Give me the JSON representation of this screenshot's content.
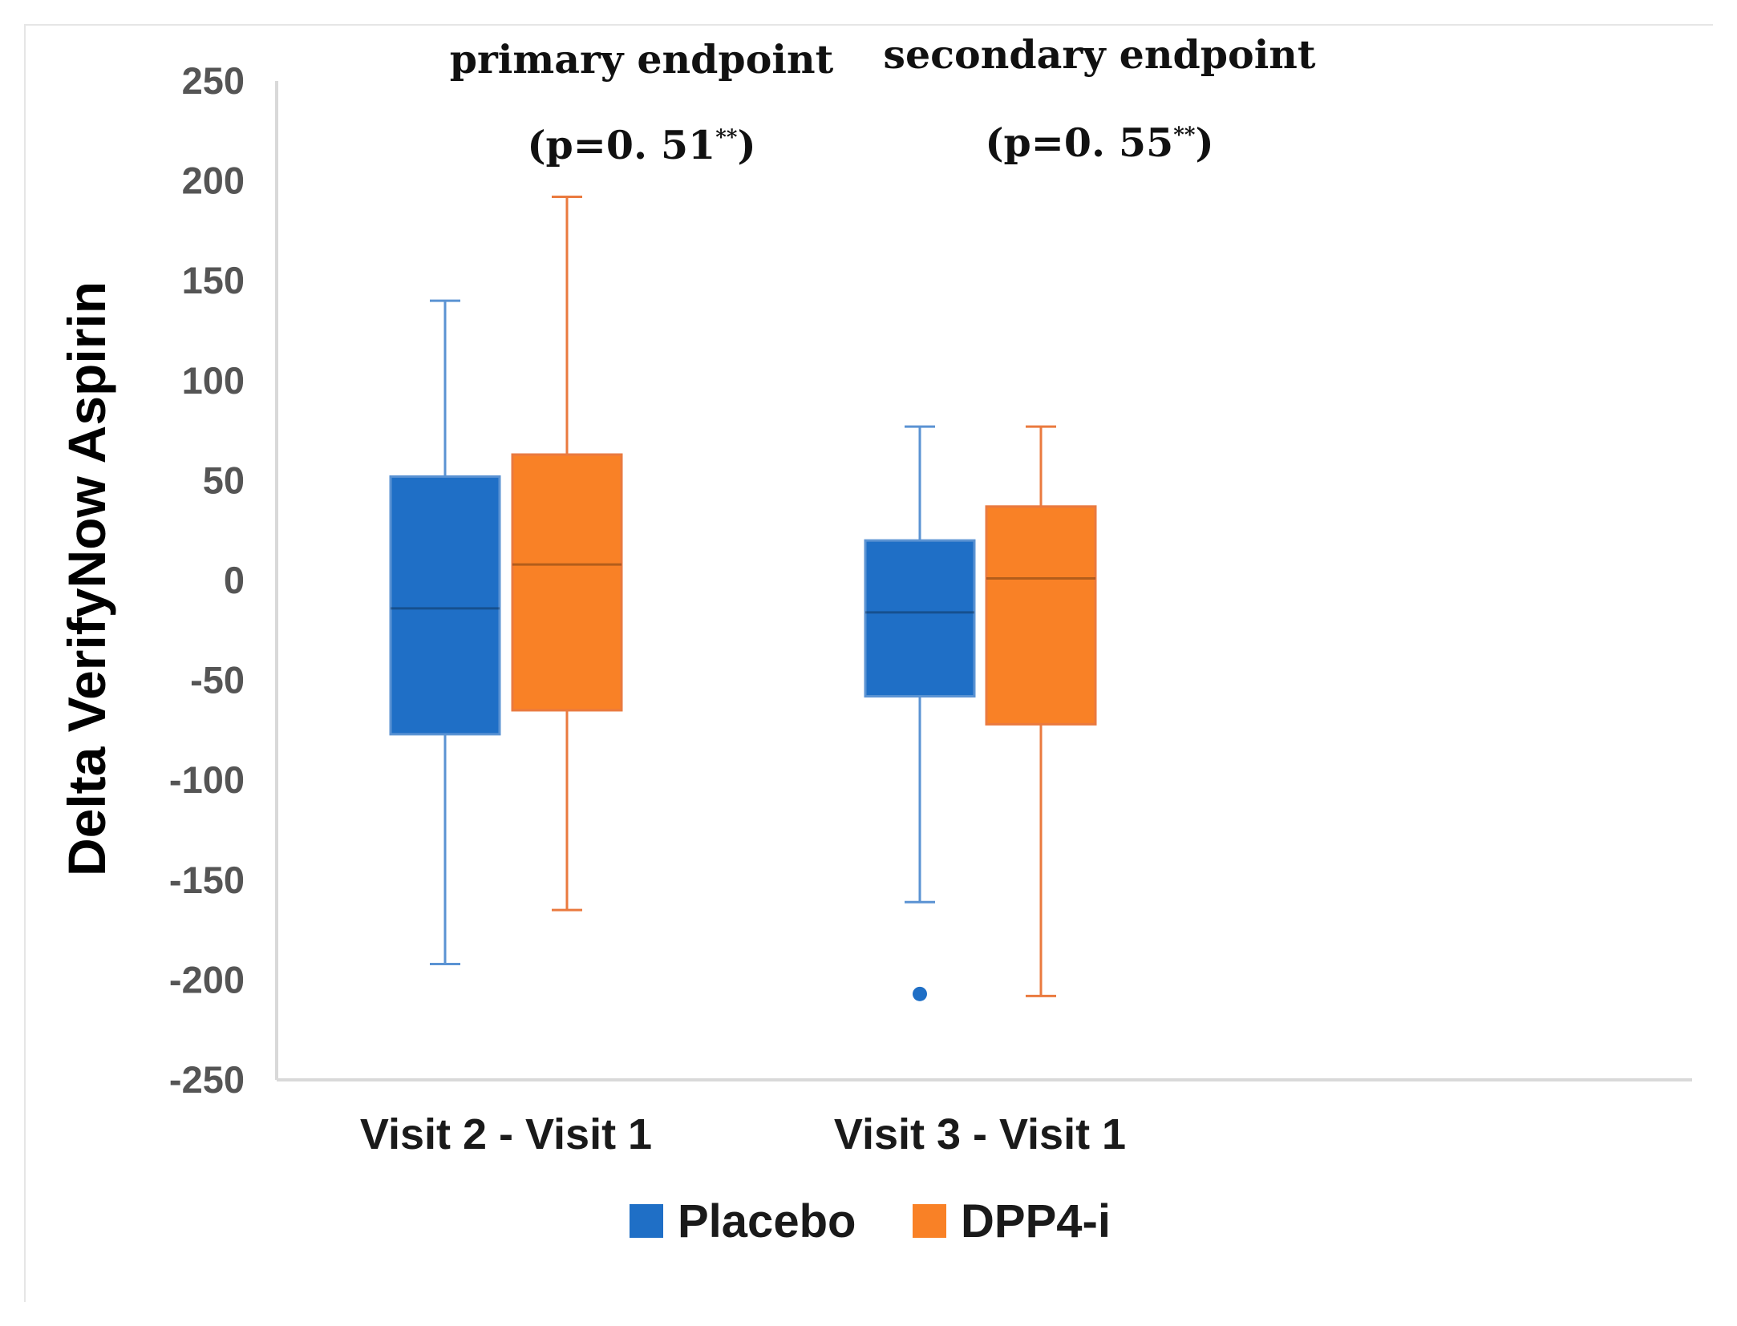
{
  "chart_data": {
    "type": "box",
    "ylabel": "Delta  VerifyNow Aspirin",
    "xlabel": "",
    "ylim": [
      -250,
      250
    ],
    "yticks": [
      250,
      200,
      150,
      100,
      50,
      0,
      -50,
      -100,
      -150,
      -200,
      -250
    ],
    "categories": [
      "Visit 2 - Visit 1",
      "Visit 3 - Visit 1"
    ],
    "series": [
      {
        "name": "Placebo",
        "color": "#1f6fc6",
        "whisker_color": "#5b93d3",
        "boxes": [
          {
            "min": -192,
            "q1": -77,
            "median": -14,
            "q3": 52,
            "max": 140,
            "outliers": []
          },
          {
            "min": -161,
            "q1": -58,
            "median": -16,
            "q3": 20,
            "max": 77,
            "outliers": [
              -207
            ]
          }
        ]
      },
      {
        "name": "DPP4-i",
        "color": "#f98126",
        "whisker_color": "#ea7a3f",
        "boxes": [
          {
            "min": -165,
            "q1": -65,
            "median": 8,
            "q3": 63,
            "max": 192,
            "outliers": []
          },
          {
            "min": -208,
            "q1": -72,
            "median": 1,
            "q3": 37,
            "max": 77,
            "outliers": []
          }
        ]
      }
    ],
    "annotations": [
      {
        "category": 0,
        "title": "primary endpoint",
        "pvalue": "(p=0. 51",
        "stars": "**",
        "close": ")"
      },
      {
        "category": 1,
        "title": "secondary endpoint",
        "pvalue": "(p=0. 55",
        "stars": "**",
        "close": ")"
      }
    ],
    "legend": {
      "position": "bottom-center",
      "items": [
        "Placebo",
        "DPP4-i"
      ]
    },
    "grid": false
  }
}
